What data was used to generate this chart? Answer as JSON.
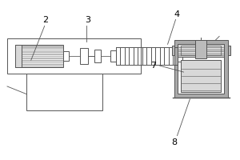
{
  "bg_color": "#ffffff",
  "line_color": "#555555",
  "fill_light": "#d8d8d8",
  "fill_medium": "#bbbbbb",
  "fill_dark": "#aaaaaa",
  "figsize": [
    3.0,
    2.0
  ],
  "dpi": 100,
  "lw": 0.7
}
